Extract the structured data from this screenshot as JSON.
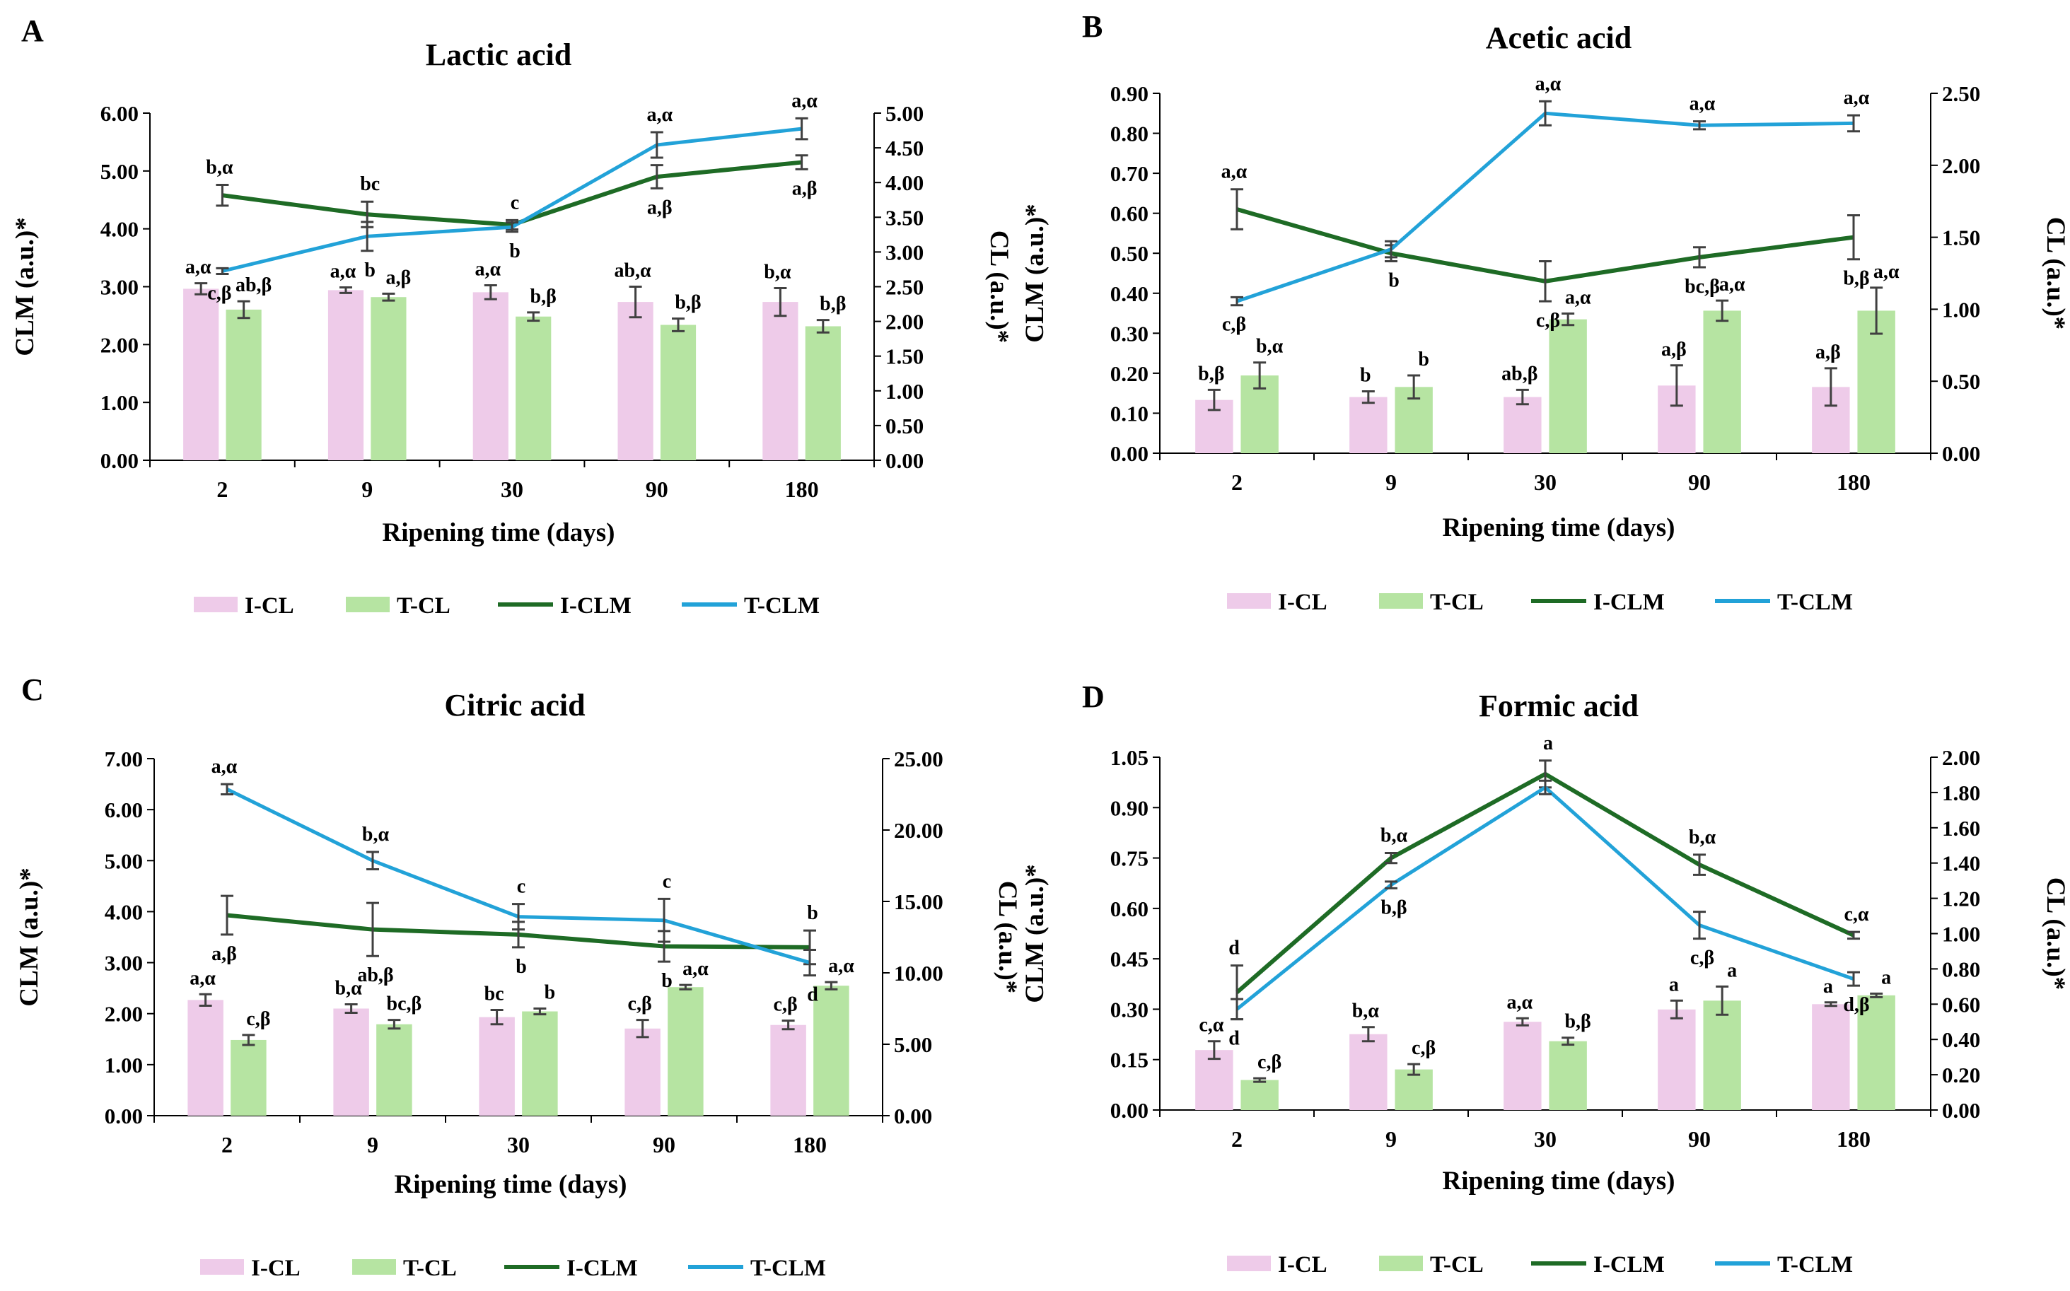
{
  "colors": {
    "I-CL": "#eecbe9",
    "T-CL": "#b6e4a2",
    "I-CLM": "#1e6b25",
    "T-CLM": "#22a2d8"
  },
  "chart_data": [
    {
      "type": "bar+line",
      "panel": "A",
      "title": "Lactic acid",
      "xlabel": "Ripening time (days)",
      "ylabel_left": "CLM (a.u.)*",
      "ylabel_right": "CL (a.u.)*",
      "categories": [
        "2",
        "9",
        "30",
        "90",
        "180"
      ],
      "left_axis": {
        "min": 0,
        "max": 6,
        "step": 1,
        "decimals": 2
      },
      "right_axis": {
        "min": 0,
        "max": 5,
        "step": 0.5,
        "decimals": 2
      },
      "legend": [
        "I-CL",
        "T-CL",
        "I-CLM",
        "T-CLM"
      ],
      "bars": [
        {
          "name": "I-CL",
          "values": [
            2.47,
            2.45,
            2.42,
            2.28,
            2.28
          ],
          "errors": [
            0.08,
            0.04,
            0.1,
            0.22,
            0.2
          ],
          "labels": [
            "a,α",
            "a,α",
            "a,α",
            "ab,α",
            "b,α"
          ]
        },
        {
          "name": "T-CL",
          "values": [
            2.17,
            2.35,
            2.07,
            1.95,
            1.93
          ],
          "errors": [
            0.12,
            0.05,
            0.06,
            0.09,
            0.09
          ],
          "labels": [
            "ab,β",
            "a,β",
            "b,β",
            "b,β",
            "b,β"
          ]
        }
      ],
      "lines": [
        {
          "name": "I-CLM",
          "values": [
            4.58,
            4.25,
            4.07,
            4.9,
            5.15
          ],
          "errors": [
            0.18,
            0.22,
            0.08,
            0.2,
            0.12
          ],
          "labels": [
            "b,α",
            "bc",
            "c",
            "a,β",
            "a,β"
          ]
        },
        {
          "name": "T-CLM",
          "values": [
            3.27,
            3.87,
            4.03,
            5.45,
            5.73
          ],
          "errors": [
            0.05,
            0.25,
            0.08,
            0.22,
            0.18
          ],
          "labels": [
            "c,β",
            "b",
            "b",
            "a,α",
            "a,α"
          ]
        }
      ]
    },
    {
      "type": "bar+line",
      "panel": "B",
      "title": "Acetic acid",
      "xlabel": "Ripening time (days)",
      "ylabel_left": "CLM (a.u.)*",
      "ylabel_right": "CL (a.u.)*",
      "categories": [
        "2",
        "9",
        "30",
        "90",
        "180"
      ],
      "left_axis": {
        "min": 0,
        "max": 0.9,
        "step": 0.1,
        "decimals": 2
      },
      "right_axis": {
        "min": 0,
        "max": 2.5,
        "step": 0.5,
        "decimals": 2
      },
      "legend": [
        "I-CL",
        "T-CL",
        "I-CLM",
        "T-CLM"
      ],
      "bars": [
        {
          "name": "I-CL",
          "values": [
            0.37,
            0.39,
            0.39,
            0.47,
            0.46
          ],
          "errors": [
            0.07,
            0.04,
            0.05,
            0.14,
            0.13
          ],
          "labels": [
            "b,β",
            "b",
            "ab,β",
            "a,β",
            "a,β"
          ]
        },
        {
          "name": "T-CL",
          "values": [
            0.54,
            0.46,
            0.93,
            0.99,
            0.99
          ],
          "errors": [
            0.09,
            0.08,
            0.04,
            0.07,
            0.16
          ],
          "labels": [
            "b,α",
            "b",
            "a,α",
            "a,α",
            "a,α"
          ]
        }
      ],
      "lines": [
        {
          "name": "I-CLM",
          "values": [
            0.61,
            0.5,
            0.43,
            0.49,
            0.54
          ],
          "errors": [
            0.05,
            0.02,
            0.05,
            0.025,
            0.055
          ],
          "labels": [
            "a,α",
            "b",
            "c,β",
            "bc,β",
            "b,β"
          ]
        },
        {
          "name": "T-CLM",
          "values": [
            0.38,
            0.51,
            0.85,
            0.82,
            0.825
          ],
          "errors": [
            0.01,
            0.02,
            0.03,
            0.01,
            0.02
          ],
          "labels": [
            "c,β",
            "",
            "a,α",
            "a,α",
            "a,α"
          ]
        }
      ]
    },
    {
      "type": "bar+line",
      "panel": "C",
      "title": "Citric acid",
      "xlabel": "Ripening time (days)",
      "ylabel_left": "CLM (a.u.)*",
      "ylabel_right": "CL (a.u.)*",
      "categories": [
        "2",
        "9",
        "30",
        "90",
        "180"
      ],
      "left_axis": {
        "min": 0,
        "max": 7,
        "step": 1,
        "decimals": 2
      },
      "right_axis": {
        "min": 0,
        "max": 25,
        "step": 5,
        "decimals": 2
      },
      "legend": [
        "I-CL",
        "T-CL",
        "I-CLM",
        "T-CLM"
      ],
      "bars": [
        {
          "name": "I-CL",
          "values": [
            8.1,
            7.5,
            6.9,
            6.1,
            6.35
          ],
          "errors": [
            0.4,
            0.3,
            0.5,
            0.6,
            0.3
          ],
          "labels": [
            "a,α",
            "b,α",
            "bc",
            "c,β",
            "c,β"
          ]
        },
        {
          "name": "T-CL",
          "values": [
            5.3,
            6.4,
            7.3,
            9.0,
            9.1
          ],
          "errors": [
            0.35,
            0.3,
            0.2,
            0.15,
            0.25
          ],
          "labels": [
            "c,β",
            "bc,β",
            "b",
            "a,α",
            "a,α"
          ]
        }
      ],
      "lines": [
        {
          "name": "I-CLM",
          "values": [
            3.93,
            3.65,
            3.55,
            3.32,
            3.3
          ],
          "errors": [
            0.38,
            0.52,
            0.25,
            0.3,
            0.33
          ],
          "labels": [
            "a,β",
            "ab,β",
            "b",
            "b",
            "b"
          ]
        },
        {
          "name": "T-CLM",
          "values": [
            6.4,
            5.0,
            3.9,
            3.83,
            3.0
          ],
          "errors": [
            0.1,
            0.17,
            0.25,
            0.42,
            0.25
          ],
          "labels": [
            "a,α",
            "b,α",
            "c",
            "c",
            "d"
          ]
        }
      ]
    },
    {
      "type": "bar+line",
      "panel": "D",
      "title": "Formic acid",
      "xlabel": "Ripening time (days)",
      "ylabel_left": "CLM (a.u.)*",
      "ylabel_right": "CL (a.u.)*",
      "categories": [
        "2",
        "9",
        "30",
        "90",
        "180"
      ],
      "left_axis": {
        "min": 0,
        "max": 1.05,
        "step": 0.15,
        "decimals": 2
      },
      "right_axis": {
        "min": 0,
        "max": 2,
        "step": 0.2,
        "decimals": 2
      },
      "legend": [
        "I-CL",
        "T-CL",
        "I-CLM",
        "T-CLM"
      ],
      "bars": [
        {
          "name": "I-CL",
          "values": [
            0.34,
            0.43,
            0.5,
            0.57,
            0.6
          ],
          "errors": [
            0.05,
            0.04,
            0.02,
            0.05,
            0.01
          ],
          "labels": [
            "c,α",
            "b,α",
            "a,α",
            "a",
            "a"
          ]
        },
        {
          "name": "T-CL",
          "values": [
            0.17,
            0.23,
            0.39,
            0.62,
            0.65
          ],
          "errors": [
            0.01,
            0.03,
            0.02,
            0.08,
            0.01
          ],
          "labels": [
            "c,β",
            "c,β",
            "b,β",
            "a",
            "a"
          ]
        }
      ],
      "lines": [
        {
          "name": "I-CLM",
          "values": [
            0.35,
            0.75,
            1.0,
            0.73,
            0.52
          ],
          "errors": [
            0.08,
            0.015,
            0.04,
            0.03,
            0.01
          ],
          "labels": [
            "d",
            "b,α",
            "a",
            "b,α",
            "c,α"
          ]
        },
        {
          "name": "T-CLM",
          "values": [
            0.3,
            0.67,
            0.96,
            0.55,
            0.39
          ],
          "errors": [
            0.03,
            0.01,
            0.02,
            0.04,
            0.02
          ],
          "labels": [
            "d",
            "b,β",
            "",
            "c,β",
            "d,β"
          ]
        }
      ]
    }
  ]
}
